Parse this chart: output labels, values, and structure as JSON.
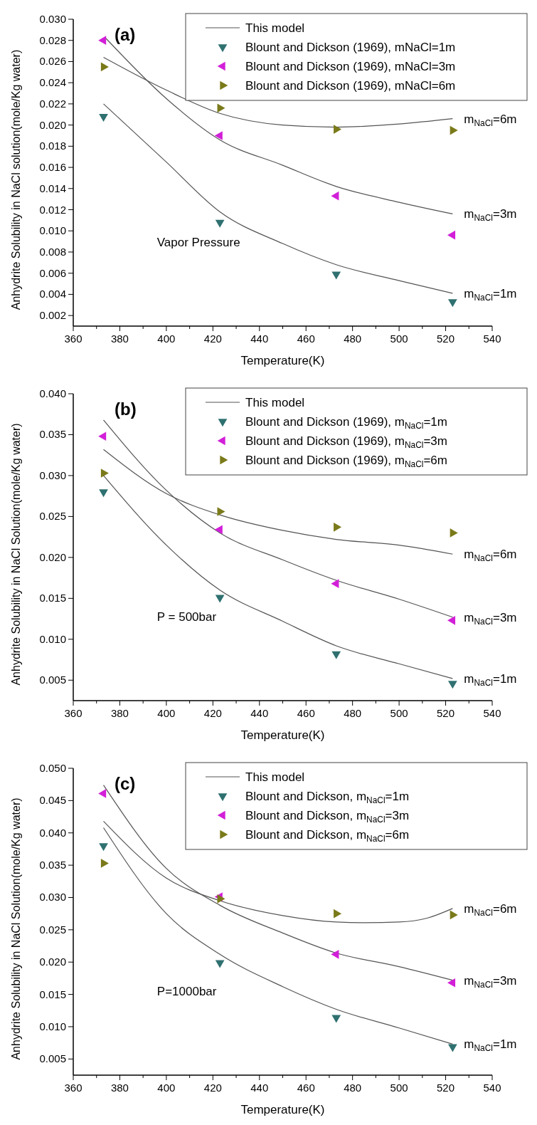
{
  "chart_data": [
    {
      "type": "scatter",
      "title": "(a)",
      "xlabel": "Temperature(K)",
      "ylabel": "Anhydrite Solubility in NaCl solution(mole/Kg water)",
      "xlim": [
        360,
        540
      ],
      "ylim": [
        0.001,
        0.03
      ],
      "xticks": [
        360,
        {
          "value": 370,
          "label": null
        },
        380,
        {
          "value": 390,
          "label": null
        },
        400,
        {
          "value": 410,
          "label": null
        },
        420,
        {
          "value": 430,
          "label": null
        },
        440,
        {
          "value": 450,
          "label": null
        },
        460,
        {
          "value": 470,
          "label": null
        },
        480,
        {
          "value": 490,
          "label": null
        },
        500,
        {
          "value": 510,
          "label": null
        },
        520,
        {
          "value": 530,
          "label": null
        },
        540
      ],
      "yticks": [
        0.002,
        0.004,
        0.006,
        0.008,
        {
          "value": 0.01,
          "label": "0.010"
        },
        0.012,
        0.014,
        0.016,
        0.018,
        {
          "value": 0.02,
          "label": "0.020"
        },
        0.022,
        0.024,
        0.026,
        0.028,
        {
          "value": 0.03,
          "label": "0.030"
        }
      ],
      "legend": "top right",
      "grid": false,
      "series": [
        {
          "type": "line",
          "name": "This model",
          "color": "#555555",
          "line_style": "solid",
          "x": [
            373,
            400,
            423,
            450,
            473,
            500,
            523
          ],
          "values": [
            0.022,
            0.0165,
            0.0118,
            0.0088,
            0.0068,
            0.0053,
            0.0041
          ]
        },
        {
          "type": "line",
          "color": "#555555",
          "line_style": "solid",
          "x": [
            374,
            400,
            423,
            450,
            473,
            500,
            523
          ],
          "values": [
            0.0282,
            0.0225,
            0.0186,
            0.0162,
            0.0142,
            0.0127,
            0.0116
          ]
        },
        {
          "type": "line",
          "color": "#555555",
          "line_style": "solid",
          "x": [
            373,
            400,
            423,
            450,
            473,
            500,
            523
          ],
          "values": [
            0.0264,
            0.0233,
            0.0211,
            0.02,
            0.0198,
            0.0201,
            0.0206
          ]
        },
        {
          "type": "scatter",
          "name": "Blount and Dickson (1969), mNaCl=1m",
          "color": "#2f7070",
          "marker": "triangle",
          "x": [
            373,
            423,
            473,
            523
          ],
          "values": [
            0.0208,
            0.0108,
            0.0059,
            0.0033
          ]
        },
        {
          "type": "scatter",
          "name": "Blount and Dickson (1969), mNaCl=3m",
          "color": "#d21fd8",
          "marker": "triangle",
          "x": [
            373,
            423,
            473,
            523
          ],
          "values": [
            0.028,
            0.019,
            0.0133,
            0.0096
          ]
        },
        {
          "type": "scatter",
          "name": "Blount and Dickson (1969), mNaCl=6m",
          "color": "#7a7a1a",
          "marker": "triangle",
          "x": [
            373,
            423,
            473,
            523
          ],
          "values": [
            0.0255,
            0.0216,
            0.0196,
            0.0195
          ]
        }
      ],
      "annotations": [
        "Vapor Pressure",
        "m$_{NaCl}$=1m",
        "m$_{NaCl}$=3m",
        "m$_{NaCl}$=6m"
      ]
    },
    {
      "type": "scatter",
      "title": "(b)",
      "xlabel": "Temperature(K)",
      "ylabel": "Anhydrite Solubility in NaCl Solution(mole/Kg water)",
      "xlim": [
        360,
        540
      ],
      "ylim": [
        0.0025,
        0.04
      ],
      "xticks": [
        360,
        {
          "value": 370,
          "label": null
        },
        380,
        {
          "value": 390,
          "label": null
        },
        400,
        {
          "value": 410,
          "label": null
        },
        420,
        {
          "value": 430,
          "label": null
        },
        440,
        {
          "value": 450,
          "label": null
        },
        460,
        {
          "value": 470,
          "label": null
        },
        480,
        {
          "value": 490,
          "label": null
        },
        500,
        {
          "value": 510,
          "label": null
        },
        520,
        {
          "value": 530,
          "label": null
        },
        540
      ],
      "yticks": [
        0.005,
        {
          "value": 0.01,
          "label": "0.010"
        },
        0.015,
        {
          "value": 0.02,
          "label": "0.020"
        },
        0.025,
        {
          "value": 0.03,
          "label": "0.030"
        },
        0.035,
        {
          "value": 0.04,
          "label": "0.040"
        }
      ],
      "legend": "top right",
      "grid": false,
      "series": [
        {
          "type": "line",
          "name": "This model",
          "color": "#555555",
          "line_style": "solid",
          "x": [
            373,
            400,
            423,
            450,
            473,
            500,
            523
          ],
          "values": [
            0.03,
            0.0215,
            0.016,
            0.0122,
            0.0092,
            0.007,
            0.0052
          ]
        },
        {
          "type": "line",
          "color": "#555555",
          "line_style": "solid",
          "x": [
            373,
            400,
            423,
            450,
            473,
            500,
            523
          ],
          "values": [
            0.0368,
            0.0282,
            0.023,
            0.0197,
            0.0172,
            0.0149,
            0.0127
          ]
        },
        {
          "type": "line",
          "color": "#555555",
          "line_style": "solid",
          "x": [
            373,
            400,
            423,
            450,
            473,
            500,
            523
          ],
          "values": [
            0.0332,
            0.0278,
            0.0252,
            0.0233,
            0.0222,
            0.0215,
            0.0204
          ]
        },
        {
          "type": "scatter",
          "name": "Blount and Dickson (1969), m$_{NaCl}$=1m",
          "color": "#2f7070",
          "marker": "triangle",
          "x": [
            373,
            423,
            473,
            523
          ],
          "values": [
            0.028,
            0.0151,
            0.0082,
            0.0046
          ]
        },
        {
          "type": "scatter",
          "name": "Blount and Dickson (1969), m$_{NaCl}$=3m",
          "color": "#d21fd8",
          "marker": "triangle",
          "x": [
            373,
            423,
            473,
            523
          ],
          "values": [
            0.0348,
            0.0234,
            0.0168,
            0.0123
          ]
        },
        {
          "type": "scatter",
          "name": "Blount and Dickson (1969), m$_{NaCl}$=6m",
          "color": "#7a7a1a",
          "marker": "triangle",
          "x": [
            373,
            423,
            473,
            523
          ],
          "values": [
            0.0303,
            0.0256,
            0.0237,
            0.023
          ]
        }
      ],
      "annotations": [
        "P = 500bar",
        "m$_{NaCl}$=1m",
        "m$_{NaCl}$=3m",
        "m$_{NaCl}$=6m"
      ]
    },
    {
      "type": "scatter",
      "title": "(c)",
      "xlabel": "Temperature(K)",
      "ylabel": "Anhydrite Solubility in NaCl Solution(mole/Kg water)",
      "xlim": [
        360,
        540
      ],
      "ylim": [
        0.0025,
        0.05
      ],
      "xticks": [
        360,
        {
          "value": 370,
          "label": null
        },
        380,
        {
          "value": 390,
          "label": null
        },
        400,
        {
          "value": 410,
          "label": null
        },
        420,
        {
          "value": 430,
          "label": null
        },
        440,
        {
          "value": 450,
          "label": null
        },
        460,
        {
          "value": 470,
          "label": null
        },
        480,
        {
          "value": 490,
          "label": null
        },
        500,
        {
          "value": 510,
          "label": null
        },
        520,
        {
          "value": 530,
          "label": null
        },
        540
      ],
      "yticks": [
        0.005,
        {
          "value": 0.01,
          "label": "0.010"
        },
        0.015,
        {
          "value": 0.02,
          "label": "0.020"
        },
        0.025,
        {
          "value": 0.03,
          "label": "0.030"
        },
        0.035,
        {
          "value": 0.04,
          "label": "0.040"
        },
        0.045,
        {
          "value": 0.05,
          "label": "0.050"
        }
      ],
      "legend": "top right",
      "grid": false,
      "series": [
        {
          "type": "line",
          "name": "This model",
          "color": "#555555",
          "line_style": "solid",
          "x": [
            373,
            400,
            423,
            450,
            473,
            500,
            523
          ],
          "values": [
            0.0408,
            0.0275,
            0.0212,
            0.0162,
            0.0127,
            0.0098,
            0.0073
          ]
        },
        {
          "type": "line",
          "color": "#555555",
          "line_style": "solid",
          "x": [
            373,
            400,
            423,
            450,
            473,
            500,
            523
          ],
          "values": [
            0.0474,
            0.0345,
            0.0288,
            0.0245,
            0.0214,
            0.0193,
            0.0172
          ]
        },
        {
          "type": "line",
          "color": "#555555",
          "line_style": "solid",
          "x": [
            373,
            400,
            423,
            450,
            473,
            485,
            500,
            512,
            523
          ],
          "values": [
            0.0418,
            0.033,
            0.0295,
            0.0272,
            0.0262,
            0.0261,
            0.0262,
            0.0268,
            0.0283
          ]
        },
        {
          "type": "scatter",
          "name": "Blount and Dickson, m$_{NaCl}$=1m",
          "color": "#2f7070",
          "marker": "triangle",
          "x": [
            373,
            423,
            473,
            523
          ],
          "values": [
            0.038,
            0.0199,
            0.0114,
            0.0069
          ]
        },
        {
          "type": "scatter",
          "name": "Blount and Dickson, m$_{NaCl}$=3m",
          "color": "#d21fd8",
          "marker": "triangle",
          "x": [
            373,
            423,
            473,
            523
          ],
          "values": [
            0.0461,
            0.0301,
            0.0212,
            0.0168
          ]
        },
        {
          "type": "scatter",
          "name": "Blount and Dickson, m$_{NaCl}$=6m",
          "color": "#7a7a1a",
          "marker": "triangle",
          "x": [
            373,
            423,
            473,
            523
          ],
          "values": [
            0.0353,
            0.0298,
            0.0275,
            0.0273
          ]
        }
      ],
      "annotations": [
        "P=1000bar",
        "m$_{NaCl}$=1m",
        "m$_{NaCl}$=3m",
        "m$_{NaCl}$=6m"
      ]
    }
  ]
}
